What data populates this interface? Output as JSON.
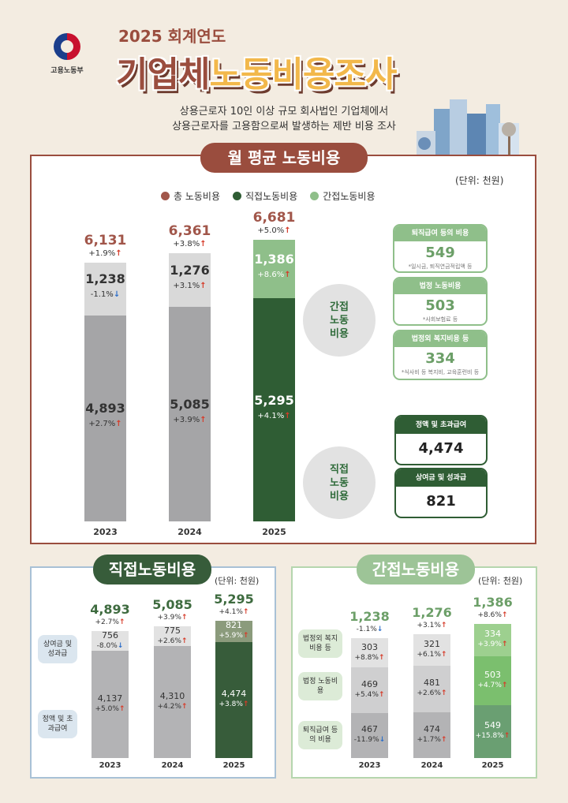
{
  "header": {
    "org_name": "고용노동부",
    "year_title": "2025 회계연도",
    "title_part_a": "기업체",
    "title_part_b": "노동비용조사",
    "subtitle_line1": "상용근로자 10인 이상 규모 회사법인 기업체에서",
    "subtitle_line2": "상용근로자를 고용함으로써 발생하는 제반 비용 조사"
  },
  "colors": {
    "total": "#a1564a",
    "direct": "#2f5d34",
    "indirect": "#8fbf8a",
    "grey_dark": "#a5a5a7",
    "grey_light": "#d9d9d9",
    "brown": "#9a4d3e",
    "up": "#d63c2a",
    "down": "#2d6fc9"
  },
  "main": {
    "tab": "월 평균 노동비용",
    "unit": "(단위: 천원)",
    "legend": [
      "총 노동비용",
      "직접노동비용",
      "간접노동비용"
    ],
    "bubble_indirect": [
      "간접",
      "노동",
      "비용"
    ],
    "bubble_direct": [
      "직접",
      "노동",
      "비용"
    ],
    "side_boxes": [
      {
        "label": "퇴직급여 등의 비용",
        "value": "549",
        "note": "*일시금, 퇴직연금적립액 등"
      },
      {
        "label": "법정 노동비용",
        "value": "503",
        "note": "*사회보험료 등"
      },
      {
        "label": "법정외 복지비용 등",
        "value": "334",
        "note": "*식사비 등 복지비, 교육훈련비 등"
      }
    ],
    "direct_boxes": [
      {
        "label": "정액 및 초과급여",
        "value": "4,474"
      },
      {
        "label": "상여금 및 성과급",
        "value": "821"
      }
    ]
  },
  "chart_data": [
    {
      "type": "bar",
      "categories": [
        "2023",
        "2024",
        "2025"
      ],
      "series": [
        {
          "name": "직접노동비용",
          "values": [
            4893,
            5085,
            5295
          ],
          "labels": [
            "4,893",
            "5,085",
            "5,295"
          ],
          "changes": [
            "+2.7%",
            "+3.9%",
            "+4.1%"
          ],
          "directions": [
            "up",
            "up",
            "up"
          ]
        },
        {
          "name": "간접노동비용",
          "values": [
            1238,
            1276,
            1386
          ],
          "labels": [
            "1,238",
            "1,276",
            "1,386"
          ],
          "changes": [
            "-1.1%",
            "+3.1%",
            "+8.6%"
          ],
          "directions": [
            "down",
            "up",
            "up"
          ]
        }
      ],
      "totals": {
        "name": "총 노동비용",
        "values": [
          6131,
          6361,
          6681
        ],
        "labels": [
          "6,131",
          "6,361",
          "6,681"
        ],
        "changes": [
          "+1.9%",
          "+3.8%",
          "+5.0%"
        ],
        "directions": [
          "up",
          "up",
          "up"
        ]
      }
    },
    {
      "type": "bar",
      "title": "직접노동비용",
      "unit": "(단위: 천원)",
      "categories": [
        "2023",
        "2024",
        "2025"
      ],
      "row_labels": [
        "상여금 및 성과급",
        "정액 및 초과급여"
      ],
      "series": [
        {
          "name": "정액 및 초과급여",
          "values": [
            4137,
            4310,
            4474
          ],
          "labels": [
            "4,137",
            "4,310",
            "4,474"
          ],
          "changes": [
            "+5.0%",
            "+4.2%",
            "+3.8%"
          ],
          "directions": [
            "up",
            "up",
            "up"
          ]
        },
        {
          "name": "상여금 및 성과급",
          "values": [
            756,
            775,
            821
          ],
          "labels": [
            "756",
            "775",
            "821"
          ],
          "changes": [
            "-8.0%",
            "+2.6%",
            "+5.9%"
          ],
          "directions": [
            "down",
            "up",
            "up"
          ]
        }
      ],
      "totals": {
        "values": [
          4893,
          5085,
          5295
        ],
        "labels": [
          "4,893",
          "5,085",
          "5,295"
        ],
        "changes": [
          "+2.7%",
          "+3.9%",
          "+4.1%"
        ],
        "directions": [
          "up",
          "up",
          "up"
        ]
      }
    },
    {
      "type": "bar",
      "title": "간접노동비용",
      "unit": "(단위: 천원)",
      "categories": [
        "2023",
        "2024",
        "2025"
      ],
      "row_labels": [
        "법정외 복지비용 등",
        "법정 노동비용",
        "퇴직급여 등의 비용"
      ],
      "series": [
        {
          "name": "퇴직급여 등의 비용",
          "values": [
            467,
            474,
            549
          ],
          "labels": [
            "467",
            "474",
            "549"
          ],
          "changes": [
            "-11.9%",
            "+1.7%",
            "+15.8%"
          ],
          "directions": [
            "down",
            "up",
            "up"
          ]
        },
        {
          "name": "법정 노동비용",
          "values": [
            469,
            481,
            503
          ],
          "labels": [
            "469",
            "481",
            "503"
          ],
          "changes": [
            "+5.4%",
            "+2.6%",
            "+4.7%"
          ],
          "directions": [
            "up",
            "up",
            "up"
          ]
        },
        {
          "name": "법정외 복지비용 등",
          "values": [
            303,
            321,
            334
          ],
          "labels": [
            "303",
            "321",
            "334"
          ],
          "changes": [
            "+8.8%",
            "+6.1%",
            "+3.9%"
          ],
          "directions": [
            "up",
            "up",
            "up"
          ]
        }
      ],
      "totals": {
        "values": [
          1238,
          1276,
          1386
        ],
        "labels": [
          "1,238",
          "1,276",
          "1,386"
        ],
        "changes": [
          "-1.1%",
          "+3.1%",
          "+8.6%"
        ],
        "directions": [
          "down",
          "up",
          "up"
        ]
      }
    }
  ]
}
